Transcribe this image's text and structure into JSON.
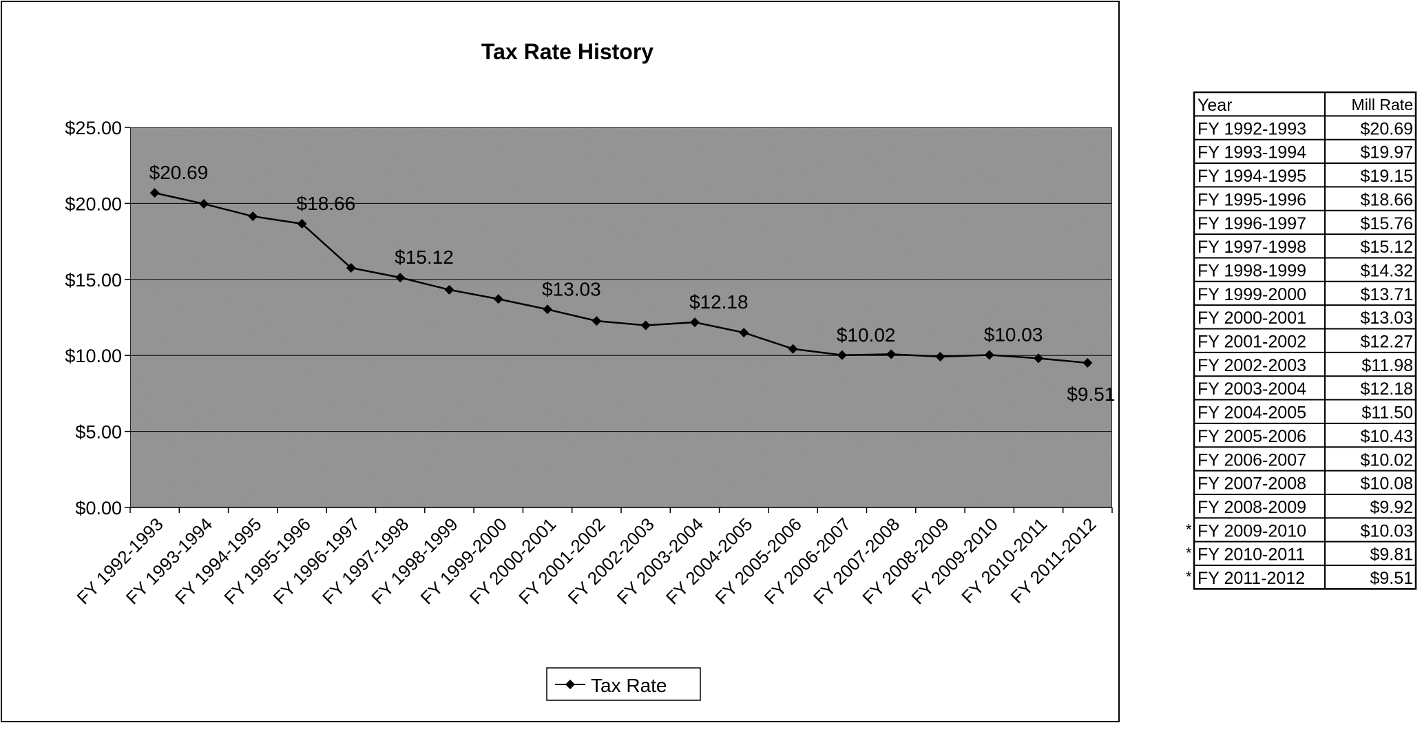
{
  "chart_data": {
    "type": "line",
    "title": "Tax Rate History",
    "xlabel": "",
    "ylabel": "",
    "ylim": [
      0,
      25
    ],
    "yticks": [
      0,
      5,
      10,
      15,
      20,
      25
    ],
    "ytick_labels": [
      "$0.00",
      "$5.00",
      "$10.00",
      "$15.00",
      "$20.00",
      "$25.00"
    ],
    "grid": true,
    "legend_position": "bottom",
    "categories": [
      "FY 1992-1993",
      "FY 1993-1994",
      "FY 1994-1995",
      "FY 1995-1996",
      "FY 1996-1997",
      "FY 1997-1998",
      "FY 1998-1999",
      "FY 1999-2000",
      "FY 2000-2001",
      "FY 2001-2002",
      "FY 2002-2003",
      "FY 2003-2004",
      "FY 2004-2005",
      "FY 2005-2006",
      "FY 2006-2007",
      "FY 2007-2008",
      "FY 2008-2009",
      "FY 2009-2010",
      "FY 2010-2011",
      "FY 2011-2012"
    ],
    "series": [
      {
        "name": "Tax Rate",
        "color": "#000000",
        "values": [
          20.69,
          19.97,
          19.15,
          18.66,
          15.76,
          15.12,
          14.32,
          13.71,
          13.03,
          12.27,
          11.98,
          12.18,
          11.5,
          10.43,
          10.02,
          10.08,
          9.92,
          10.03,
          9.81,
          9.51
        ]
      }
    ],
    "data_labels": [
      {
        "index": 0,
        "text": "$20.69"
      },
      {
        "index": 3,
        "text": "$18.66"
      },
      {
        "index": 5,
        "text": "$15.12"
      },
      {
        "index": 8,
        "text": "$13.03"
      },
      {
        "index": 11,
        "text": "$12.18"
      },
      {
        "index": 14,
        "text": "$10.02"
      },
      {
        "index": 17,
        "text": "$10.03"
      },
      {
        "index": 19,
        "text": "$9.51"
      }
    ],
    "plot_background": "#9a9a9a"
  },
  "table": {
    "headers": [
      "Year",
      "Mill Rate"
    ],
    "rows": [
      {
        "mark": "",
        "year": "FY 1992-1993",
        "rate": "$20.69"
      },
      {
        "mark": "",
        "year": "FY 1993-1994",
        "rate": "$19.97"
      },
      {
        "mark": "",
        "year": "FY 1994-1995",
        "rate": "$19.15"
      },
      {
        "mark": "",
        "year": "FY 1995-1996",
        "rate": "$18.66"
      },
      {
        "mark": "",
        "year": "FY 1996-1997",
        "rate": "$15.76"
      },
      {
        "mark": "",
        "year": "FY 1997-1998",
        "rate": "$15.12"
      },
      {
        "mark": "",
        "year": "FY 1998-1999",
        "rate": "$14.32"
      },
      {
        "mark": "",
        "year": "FY 1999-2000",
        "rate": "$13.71"
      },
      {
        "mark": "",
        "year": "FY 2000-2001",
        "rate": "$13.03"
      },
      {
        "mark": "",
        "year": "FY 2001-2002",
        "rate": "$12.27"
      },
      {
        "mark": "",
        "year": "FY 2002-2003",
        "rate": "$11.98"
      },
      {
        "mark": "",
        "year": "FY 2003-2004",
        "rate": "$12.18"
      },
      {
        "mark": "",
        "year": "FY 2004-2005",
        "rate": "$11.50"
      },
      {
        "mark": "",
        "year": "FY 2005-2006",
        "rate": "$10.43"
      },
      {
        "mark": "",
        "year": "FY 2006-2007",
        "rate": "$10.02"
      },
      {
        "mark": "",
        "year": "FY 2007-2008",
        "rate": "$10.08"
      },
      {
        "mark": "",
        "year": "FY 2008-2009",
        "rate": "$9.92"
      },
      {
        "mark": "*",
        "year": "FY 2009-2010",
        "rate": "$10.03"
      },
      {
        "mark": "*",
        "year": "FY 2010-2011",
        "rate": "$9.81"
      },
      {
        "mark": "*",
        "year": "FY 2011-2012",
        "rate": "$9.51"
      }
    ]
  }
}
